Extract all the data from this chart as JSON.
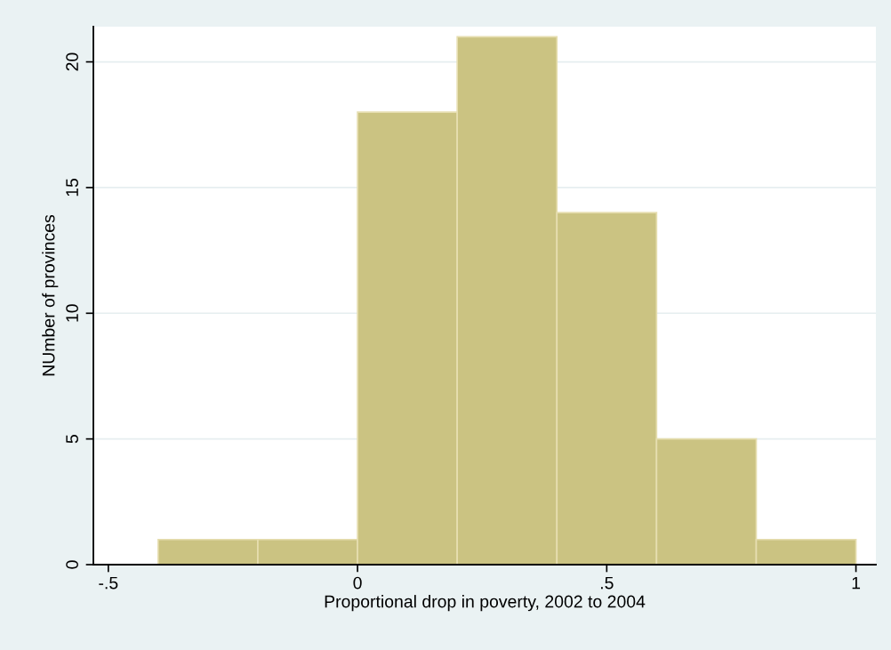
{
  "chart_data": {
    "type": "histogram",
    "xlabel": "Proportional drop in poverty, 2002 to 2004",
    "ylabel": "NUmber of provinces",
    "bins": [
      -0.4,
      -0.2,
      0,
      0.2,
      0.4,
      0.6,
      0.8,
      1.0
    ],
    "values": [
      1,
      1,
      18,
      21,
      14,
      5,
      1
    ],
    "color": "#cbc382",
    "xlim": [
      -0.53,
      1.04
    ],
    "ylim": [
      0,
      21.4
    ],
    "xticks": [
      {
        "value": -0.5,
        "label": "-.5"
      },
      0,
      {
        "value": 0.5,
        "label": ".5"
      },
      1
    ],
    "yticks": [
      0,
      5,
      10,
      15,
      20
    ],
    "grid": "y"
  }
}
